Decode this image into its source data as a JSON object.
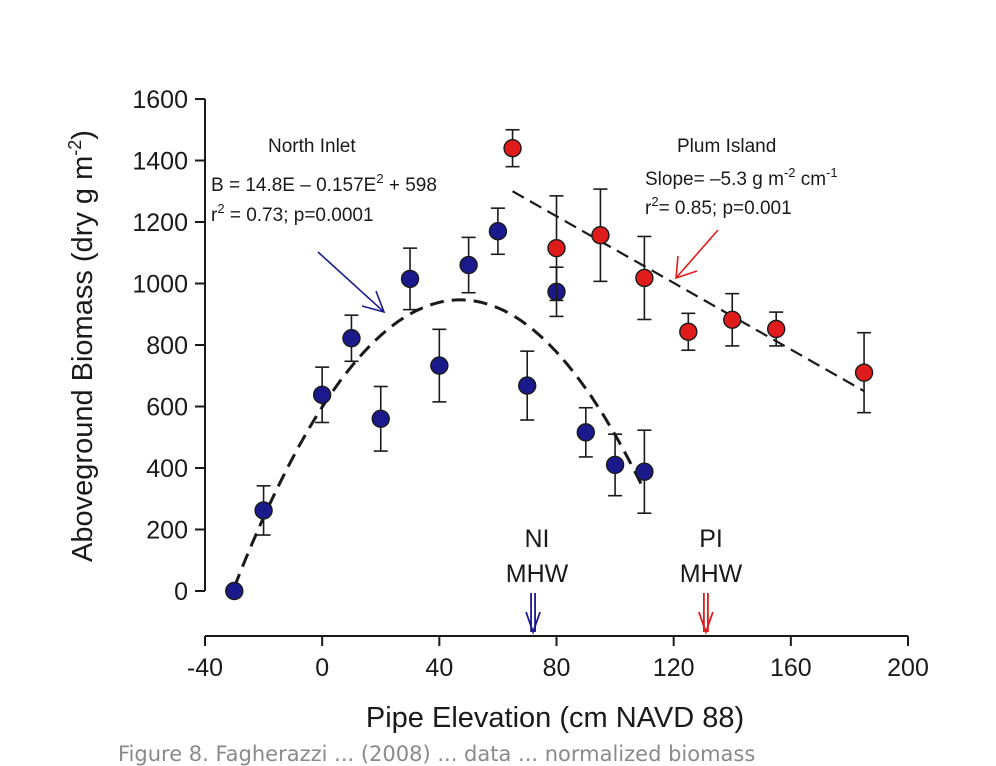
{
  "chart_data": {
    "type": "scatter",
    "xlabel": "Pipe Elevation (cm NAVD 88)",
    "ylabel": "Aboveground Biomass (dry g m",
    "ylabel_sup": "-2",
    "ylabel_close": ")",
    "xlim": [
      -40,
      200
    ],
    "ylim": [
      0,
      1600
    ],
    "xticks": [
      "-40",
      "0",
      "40",
      "80",
      "120",
      "160",
      "200"
    ],
    "yticks": [
      "0",
      "200",
      "400",
      "600",
      "800",
      "1000",
      "1200",
      "1400",
      "1600"
    ],
    "xtick_values": [
      -40,
      0,
      40,
      80,
      120,
      160,
      200
    ],
    "ytick_values": [
      0,
      200,
      400,
      600,
      800,
      1000,
      1200,
      1400,
      1600
    ],
    "grid": false,
    "series": [
      {
        "name": "North Inlet",
        "color": "#1a1a8c",
        "points": [
          {
            "x": -30,
            "y": 0,
            "err": 0
          },
          {
            "x": -20,
            "y": 262,
            "err": 80
          },
          {
            "x": 0,
            "y": 638,
            "err": 90
          },
          {
            "x": 10,
            "y": 822,
            "err": 75
          },
          {
            "x": 20,
            "y": 560,
            "err": 105
          },
          {
            "x": 30,
            "y": 1015,
            "err": 100
          },
          {
            "x": 40,
            "y": 733,
            "err": 118
          },
          {
            "x": 50,
            "y": 1060,
            "err": 90
          },
          {
            "x": 60,
            "y": 1170,
            "err": 75
          },
          {
            "x": 70,
            "y": 668,
            "err": 112
          },
          {
            "x": 80,
            "y": 973,
            "err": 80
          },
          {
            "x": 90,
            "y": 516,
            "err": 80
          },
          {
            "x": 100,
            "y": 410,
            "err": 100
          },
          {
            "x": 110,
            "y": 388,
            "err": 135
          }
        ],
        "fit": {
          "equation_type": "quadratic",
          "a": 598,
          "b": 14.8,
          "c": -0.157,
          "x_range": [
            -30,
            110
          ]
        }
      },
      {
        "name": "Plum Island",
        "color": "#e01b1b",
        "points": [
          {
            "x": 65,
            "y": 1440,
            "err": 60
          },
          {
            "x": 80,
            "y": 1115,
            "err": 170
          },
          {
            "x": 95,
            "y": 1157,
            "err": 150
          },
          {
            "x": 110,
            "y": 1018,
            "err": 135
          },
          {
            "x": 125,
            "y": 843,
            "err": 60
          },
          {
            "x": 140,
            "y": 882,
            "err": 85
          },
          {
            "x": 155,
            "y": 852,
            "err": 55
          },
          {
            "x": 185,
            "y": 710,
            "err": 130
          }
        ],
        "fit": {
          "equation_type": "linear",
          "x_range": [
            65,
            185
          ],
          "y_range": [
            1300,
            650
          ]
        }
      }
    ],
    "annotations": {
      "ni_label": "North Inlet",
      "ni_eq_1": "B = 14.8E – 0.157E",
      "ni_eq_1_sup": "2",
      "ni_eq_1_tail": " + 598",
      "ni_r_pre": "r",
      "ni_r_sup": "2",
      "ni_r_tail": " = 0.73; p=0.0001",
      "pi_label": "Plum Island",
      "pi_slope_1": "Slope= –5.3 g m",
      "pi_slope_sup1": "-2",
      "pi_slope_2": " cm",
      "pi_slope_sup2": "-1",
      "pi_r_pre": "r",
      "pi_r_sup": "2",
      "pi_r_tail": "= 0.85;  p=0.001",
      "ni_mhw_1": "NI",
      "ni_mhw_2": "MHW",
      "ni_mhw_x": 72,
      "pi_mhw_1": "PI",
      "pi_mhw_2": "MHW",
      "pi_mhw_x": 131
    }
  },
  "caption": "Figure 8. Fagherazzi ... (2008) ... data ... normalized biomass"
}
